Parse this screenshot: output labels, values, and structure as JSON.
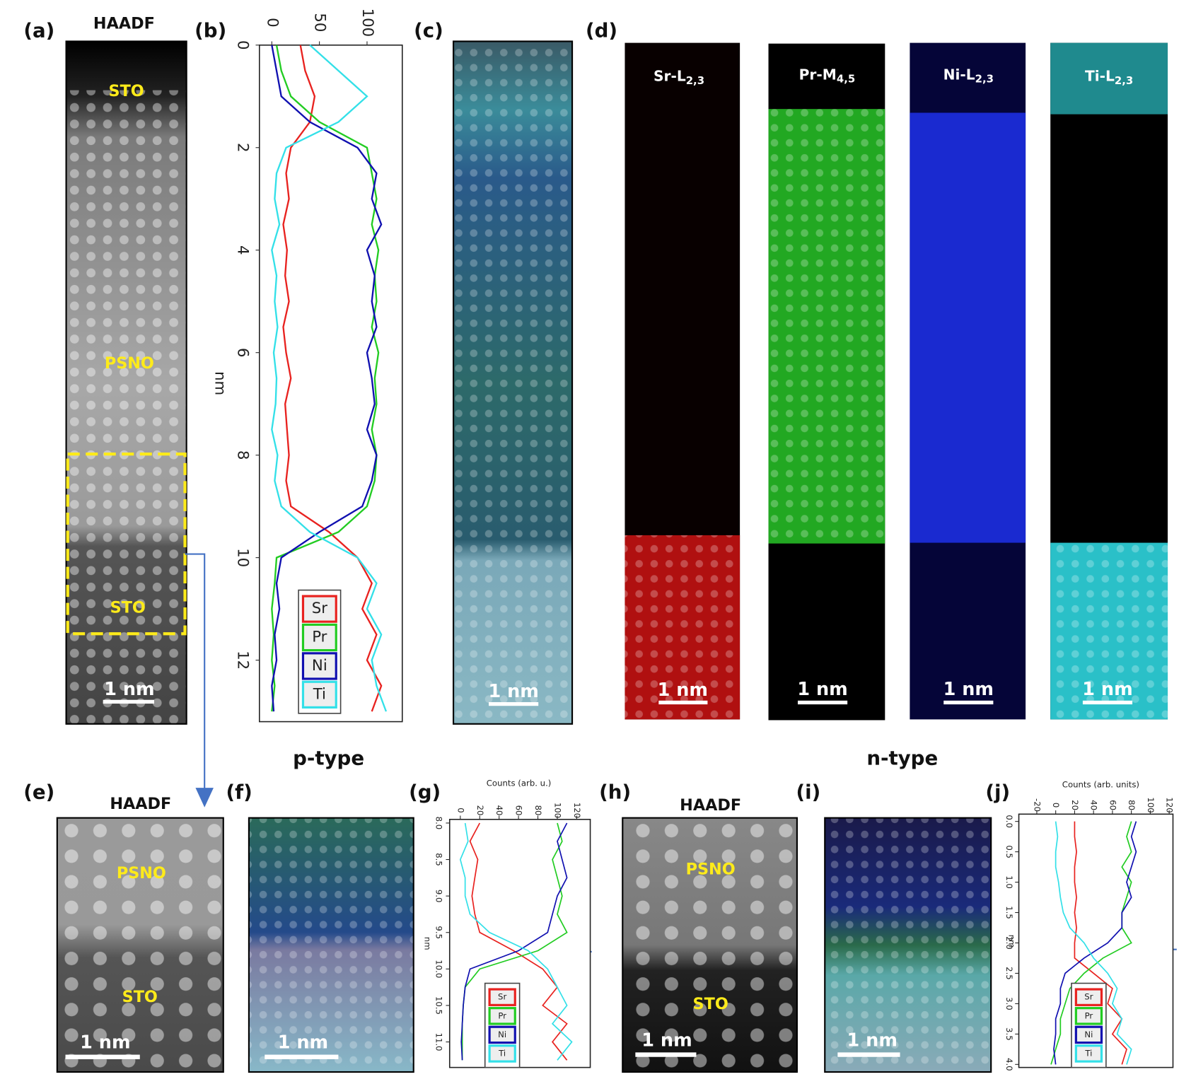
{
  "panel_labels": [
    "(a)",
    "(b)",
    "(c)",
    "(d)",
    "(e)",
    "(f)",
    "(g)",
    "(h)",
    "(i)",
    "(j)"
  ],
  "headings": {
    "p": "p-type",
    "n": "n-type"
  },
  "images": {
    "a": {
      "title": "HAADF",
      "labels": [
        "STO",
        "PSNO",
        "STO"
      ],
      "scale": "1 nm"
    },
    "c": {
      "scale": "1 nm"
    },
    "d": [
      {
        "element": "Sr-L",
        "sub": "2,3",
        "scale": "1 nm"
      },
      {
        "element": "Pr-M",
        "sub": "4,5",
        "scale": "1 nm"
      },
      {
        "element": "Ni-L",
        "sub": "2,3",
        "scale": "1 nm"
      },
      {
        "element": "Ti-L",
        "sub": "2,3",
        "scale": "1 nm"
      }
    ],
    "e": {
      "title": "HAADF",
      "labels": [
        "PSNO",
        "STO"
      ],
      "scale": "1 nm"
    },
    "f": {
      "scale": "1 nm"
    },
    "h": {
      "title": "HAADF",
      "labels": [
        "PSNO",
        "STO"
      ],
      "scale": "1 nm"
    },
    "i": {
      "scale": "1 nm"
    }
  },
  "chart_data": [
    {
      "type": "line",
      "x_label": "nm",
      "x": [
        0,
        0.5,
        1,
        1.5,
        2,
        2.5,
        3,
        3.5,
        4,
        4.5,
        5,
        5.5,
        6,
        6.5,
        7,
        7.5,
        8,
        8.5,
        9,
        9.5,
        10,
        10.5,
        11,
        11.5,
        12,
        12.5,
        13
      ],
      "xlim": [
        0,
        13.2
      ],
      "xticks": [
        0,
        2,
        4,
        6,
        8,
        10,
        12
      ],
      "ylim": [
        -13,
        137
      ],
      "yticks": [
        0,
        50,
        100
      ],
      "series": [
        {
          "name": "Sr",
          "color": "#e8221f",
          "values": [
            30,
            35,
            45,
            40,
            20,
            15,
            18,
            12,
            16,
            14,
            18,
            12,
            15,
            20,
            14,
            16,
            18,
            15,
            20,
            60,
            90,
            105,
            95,
            110,
            100,
            115,
            105
          ]
        },
        {
          "name": "Pr",
          "color": "#22cc22",
          "values": [
            5,
            10,
            20,
            50,
            100,
            105,
            110,
            105,
            112,
            108,
            110,
            105,
            112,
            108,
            110,
            105,
            110,
            108,
            100,
            70,
            5,
            3,
            0,
            2,
            0,
            3,
            0
          ]
        },
        {
          "name": "Ni",
          "color": "#1010b0",
          "values": [
            0,
            5,
            10,
            40,
            90,
            110,
            105,
            115,
            100,
            108,
            105,
            110,
            100,
            105,
            108,
            100,
            110,
            105,
            95,
            50,
            10,
            5,
            8,
            3,
            5,
            0,
            2
          ]
        },
        {
          "name": "Ti",
          "color": "#33e0e8",
          "values": [
            40,
            70,
            100,
            70,
            15,
            5,
            3,
            8,
            0,
            5,
            3,
            6,
            2,
            5,
            4,
            0,
            6,
            3,
            10,
            40,
            90,
            110,
            100,
            115,
            105,
            110,
            120
          ]
        }
      ]
    },
    {
      "type": "line",
      "x_label": "nm",
      "y_label": "Counts (arb. u.)",
      "x": [
        8,
        8.25,
        8.5,
        8.75,
        9,
        9.25,
        9.5,
        9.75,
        10,
        10.25,
        10.5,
        10.75,
        11,
        11.25
      ],
      "xlim": [
        7.95,
        11.35
      ],
      "xticks": [
        {
          "value": 8,
          "label": "8.0"
        },
        {
          "value": 8.5,
          "label": "8.5"
        },
        {
          "value": 9,
          "label": "9.0"
        },
        {
          "value": 9.5,
          "label": "9.5"
        },
        {
          "value": 10,
          "label": "10.0"
        },
        {
          "value": 10.5,
          "label": "10.5"
        },
        {
          "value": 11,
          "label": "11.0"
        }
      ],
      "ylim": [
        -11,
        134
      ],
      "yticks": [
        0,
        20,
        40,
        60,
        80,
        100,
        120
      ],
      "series": [
        {
          "name": "Sr",
          "color": "#e8221f",
          "values": [
            20,
            10,
            18,
            15,
            12,
            15,
            20,
            55,
            85,
            100,
            85,
            110,
            95,
            110
          ]
        },
        {
          "name": "Pr",
          "color": "#22cc22",
          "values": [
            100,
            105,
            95,
            100,
            105,
            100,
            110,
            80,
            20,
            5,
            3,
            2,
            2,
            2
          ]
        },
        {
          "name": "Ni",
          "color": "#1010b0",
          "values": [
            110,
            100,
            105,
            110,
            100,
            95,
            90,
            60,
            10,
            5,
            3,
            2,
            1,
            2
          ]
        },
        {
          "name": "Ti",
          "color": "#33e0e8",
          "values": [
            5,
            8,
            0,
            5,
            5,
            10,
            30,
            70,
            90,
            100,
            110,
            95,
            115,
            100
          ]
        }
      ]
    },
    {
      "type": "line",
      "x_label": "nm",
      "y_label": "Counts (arb. units)",
      "x": [
        0,
        0.25,
        0.5,
        0.75,
        1,
        1.25,
        1.5,
        1.75,
        2,
        2.25,
        2.5,
        2.75,
        3,
        3.25,
        3.5,
        3.75,
        4
      ],
      "xlim": [
        -0.12,
        4.05
      ],
      "xticks": [
        {
          "value": 0,
          "label": "0.0"
        },
        0.5,
        {
          "value": 1,
          "label": "1.0"
        },
        1.5,
        {
          "value": 2,
          "label": "2.0"
        },
        2.5,
        {
          "value": 3,
          "label": "3.0"
        },
        3.5,
        {
          "value": 4,
          "label": "4.0"
        }
      ],
      "ylim": [
        -39,
        124
      ],
      "yticks": [
        -20,
        0,
        20,
        40,
        60,
        80,
        100,
        120
      ],
      "series": [
        {
          "name": "Sr",
          "color": "#e8221f",
          "values": [
            20,
            20,
            22,
            20,
            20,
            22,
            20,
            22,
            20,
            20,
            40,
            60,
            55,
            70,
            60,
            75,
            70
          ]
        },
        {
          "name": "Pr",
          "color": "#22cc22",
          "values": [
            80,
            75,
            80,
            70,
            80,
            75,
            70,
            70,
            80,
            50,
            30,
            15,
            10,
            5,
            5,
            0,
            -5
          ]
        },
        {
          "name": "Ni",
          "color": "#1010b0",
          "values": [
            85,
            80,
            85,
            80,
            75,
            80,
            70,
            70,
            55,
            30,
            10,
            5,
            5,
            0,
            0,
            -2,
            0
          ]
        },
        {
          "name": "Ti",
          "color": "#33e0e8",
          "values": [
            0,
            2,
            0,
            0,
            3,
            5,
            8,
            15,
            30,
            40,
            55,
            65,
            60,
            70,
            65,
            80,
            75
          ]
        }
      ]
    }
  ]
}
